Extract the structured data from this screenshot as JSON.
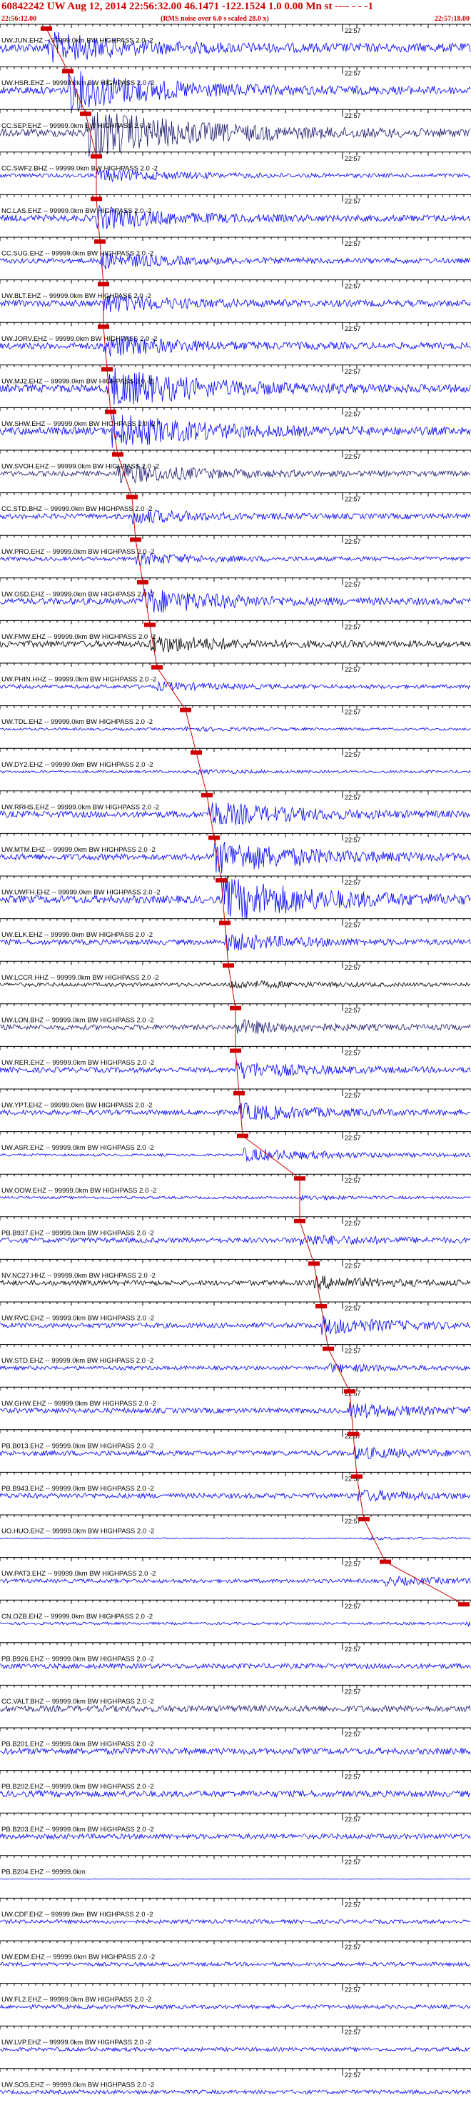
{
  "header": {
    "title": "60842242 UW Aug 12, 2014 22:56:32.00   46.1471  -122.1524  1.0 0.00  Mn st ---- - - -1",
    "start_time": "22:56:12.00",
    "noise_note": "(RMS noise over 6.0 s scaled 28.0 x)",
    "end_time": "22:57:18.00"
  },
  "colors": {
    "header": "#d00000",
    "blue": "#0000ff",
    "black": "#000000",
    "navy": "#1a1a6e",
    "pick": "#d00000"
  },
  "chart_data": {
    "type": "line",
    "title": "60842242 UW Aug 12, 2014 22:56:32.00   46.1471  -122.1524  1.0 0.00  Mn st ---- - - -1",
    "xlabel": "",
    "ylabel": "",
    "xlim": [
      "22:56:12.00",
      "22:57:18.00"
    ],
    "minute_label": "22:57",
    "grid": false,
    "series": [
      {
        "name": "UW.JUN.EHZ -- 99999.0km BW  HIGHPASS  2.0 -2",
        "color": "blue",
        "pick_time": 6.5,
        "amplitude": 0.35,
        "burst": 0.5
      },
      {
        "name": "UW.HSR.EHZ -- 99999.0km BW  HIGHPASS  2.0 -2",
        "color": "blue",
        "pick_time": 9.5,
        "amplitude": 0.3,
        "burst": 0.8
      },
      {
        "name": "CC.SEP.EHZ -- 99999.0km BW  HIGHPASS  2.0 -2",
        "color": "navy",
        "pick_time": 12.0,
        "amplitude": 0.3,
        "burst": 1.0
      },
      {
        "name": "CC.SWF2.BHZ -- 99999.0km BW  HIGHPASS  2.0 -2",
        "color": "blue",
        "pick_time": 13.5,
        "amplitude": 0.15,
        "burst": 0.5
      },
      {
        "name": "NC.LAS.EHZ -- 99999.0km BW  HIGHPASS  2.0 -2",
        "color": "blue",
        "pick_time": 13.5,
        "amplitude": 0.25,
        "burst": 0.5
      },
      {
        "name": "CC.SUG.EHZ -- 99999.0km BW  HIGHPASS  2.0 -2",
        "color": "blue",
        "pick_time": 14.0,
        "amplitude": 0.2,
        "burst": 0.45
      },
      {
        "name": "UW.BLT.EHZ -- 99999.0km BW  HIGHPASS  2.0 -2",
        "color": "blue",
        "pick_time": 14.5,
        "amplitude": 0.25,
        "burst": 0.4
      },
      {
        "name": "UW.JORV.EHZ -- 99999.0km BW  HIGHPASS  2.0 -2",
        "color": "blue",
        "pick_time": 14.5,
        "amplitude": 0.25,
        "burst": 0.5
      },
      {
        "name": "UW.MJ2.EHZ -- 99999.0km BW  HIGHPASS  2.0 -2",
        "color": "blue",
        "pick_time": 15.0,
        "amplitude": 0.3,
        "burst": 0.8
      },
      {
        "name": "UW.SHW.EHZ -- 99999.0km BW  HIGHPASS  2.0 -2",
        "color": "blue",
        "pick_time": 15.5,
        "amplitude": 0.3,
        "burst": 0.7
      },
      {
        "name": "UW.SVOH.EHZ -- 99999.0km BW  HIGHPASS  2.0 -2",
        "color": "navy",
        "pick_time": 16.5,
        "amplitude": 0.2,
        "burst": 0.6
      },
      {
        "name": "CC.STD.BHZ -- 99999.0km BW  HIGHPASS  2.0 -2",
        "color": "blue",
        "pick_time": 18.5,
        "amplitude": 0.2,
        "burst": 0.4
      },
      {
        "name": "UW.PRO.EHZ -- 99999.0km BW  HIGHPASS  2.0 -2",
        "color": "blue",
        "pick_time": 19.0,
        "amplitude": 0.15,
        "burst": 0.45
      },
      {
        "name": "UW.OSD.EHZ -- 99999.0km BW  HIGHPASS  2.0 -2",
        "color": "blue",
        "pick_time": 20.0,
        "amplitude": 0.25,
        "burst": 0.6
      },
      {
        "name": "UW.FMW.EHZ -- 99999.0km BW  HIGHPASS  2.0 -2",
        "color": "black",
        "pick_time": 21.0,
        "amplitude": 0.25,
        "burst": 0.4
      },
      {
        "name": "UW.PHIN.HHZ -- 99999.0km BW  HIGHPASS  2.0 -2",
        "color": "blue",
        "pick_time": 22.0,
        "amplitude": 0.15,
        "burst": 0.3
      },
      {
        "name": "UW.TDL.EHZ -- 99999.0km BW  HIGHPASS  2.0 -2",
        "color": "blue",
        "pick_time": 26.0,
        "amplitude": 0.1,
        "burst": 0.2
      },
      {
        "name": "UW.DY2.EHZ -- 99999.0km BW  HIGHPASS  2.0 -2",
        "color": "blue",
        "pick_time": 27.5,
        "amplitude": 0.1,
        "burst": 0.2
      },
      {
        "name": "UW.RRHS.EHZ -- 99999.0km BW  HIGHPASS  2.0 -2",
        "color": "blue",
        "pick_time": 29.0,
        "amplitude": 0.25,
        "burst": 0.6
      },
      {
        "name": "UW.MTM.EHZ -- 99999.0km BW  HIGHPASS  2.0 -2",
        "color": "blue",
        "pick_time": 30.0,
        "amplitude": 0.25,
        "burst": 0.8
      },
      {
        "name": "UW.UWFH.EHZ -- 99999.0km BW  HIGHPASS  2.0 -2",
        "color": "blue",
        "pick_time": 31.0,
        "amplitude": 0.3,
        "burst": 0.9
      },
      {
        "name": "UW.ELK.EHZ -- 99999.0km BW  HIGHPASS  2.0 -2",
        "color": "blue",
        "pick_time": 31.5,
        "amplitude": 0.2,
        "burst": 0.5
      },
      {
        "name": "UW.LCCR.HHZ -- 99999.0km BW  HIGHPASS  2.0 -2",
        "color": "black",
        "pick_time": 32.0,
        "amplitude": 0.15,
        "burst": 0.3
      },
      {
        "name": "UW.LON.BHZ -- 99999.0km BW  HIGHPASS  2.0 -2",
        "color": "navy",
        "pick_time": 33.0,
        "amplitude": 0.2,
        "burst": 0.4
      },
      {
        "name": "UW.RER.EHZ -- 99999.0km BW  HIGHPASS  2.0 -2",
        "color": "blue",
        "pick_time": 33.0,
        "amplitude": 0.2,
        "burst": 0.5
      },
      {
        "name": "UW.YPT.EHZ -- 99999.0km BW  HIGHPASS  2.0 -2",
        "color": "blue",
        "pick_time": 33.5,
        "amplitude": 0.2,
        "burst": 0.5
      },
      {
        "name": "UW.ASR.EHZ -- 99999.0km BW  HIGHPASS  2.0 -2",
        "color": "blue",
        "pick_time": 34.0,
        "amplitude": 0.1,
        "burst": 0.8
      },
      {
        "name": "UW.OOW.EHZ -- 99999.0km BW  HIGHPASS  2.0 -2",
        "color": "blue",
        "pick_time": 42.0,
        "amplitude": 0.1,
        "burst": 0.2
      },
      {
        "name": "PB.B937.EHZ -- 99999.0km BW  HIGHPASS  2.0 -2",
        "color": "blue",
        "pick_time": 42.0,
        "amplitude": 0.2,
        "burst": 0.3
      },
      {
        "name": "NV.NC27.HHZ -- 99999.0km BW  HIGHPASS  2.0 -2",
        "color": "black",
        "pick_time": 44.0,
        "amplitude": 0.2,
        "burst": 0.35
      },
      {
        "name": "UW.RVC.EHZ -- 99999.0km BW  HIGHPASS  2.0 -2",
        "color": "blue",
        "pick_time": 45.0,
        "amplitude": 0.2,
        "burst": 0.5
      },
      {
        "name": "UW.STD.EHZ -- 99999.0km BW  HIGHPASS  2.0 -2",
        "color": "blue",
        "pick_time": 46.0,
        "amplitude": 0.15,
        "burst": 0.3
      },
      {
        "name": "UW.GHW.EHZ -- 99999.0km BW  HIGHPASS  2.0 -2",
        "color": "blue",
        "pick_time": 49.0,
        "amplitude": 0.2,
        "burst": 0.4
      },
      {
        "name": "PB.B013.EHZ -- 99999.0km BW  HIGHPASS  2.0 -2",
        "color": "blue",
        "pick_time": 49.5,
        "amplitude": 0.2,
        "burst": 0.3
      },
      {
        "name": "PB.B943.EHZ -- 99999.0km BW  HIGHPASS  2.0 -2",
        "color": "blue",
        "pick_time": 50.0,
        "amplitude": 0.2,
        "burst": 0.3
      },
      {
        "name": "UO.HUO.EHZ -- 99999.0km BW  HIGHPASS  2.0 -2",
        "color": "blue",
        "pick_time": 51.0,
        "amplitude": 0.05,
        "burst": 0.3
      },
      {
        "name": "UW.PAT3.EHZ -- 99999.0km BW  HIGHPASS  2.0 -2",
        "color": "blue",
        "pick_time": 54.0,
        "amplitude": 0.15,
        "burst": 0.3
      },
      {
        "name": "CN.OZB.EHZ -- 99999.0km BW  HIGHPASS  2.0 -2",
        "color": "blue",
        "pick_time": 65.0,
        "amplitude": 0.1,
        "burst": 0.2
      },
      {
        "name": "PB.B926.EHZ -- 99999.0km BW  HIGHPASS  2.0 -2",
        "color": "blue",
        "pick_time": null,
        "amplitude": 0.2,
        "burst": 0
      },
      {
        "name": "CC.VALT.BHZ -- 99999.0km BW  HIGHPASS  2.0 -2",
        "color": "navy",
        "pick_time": null,
        "amplitude": 0.25,
        "burst": 0
      },
      {
        "name": "PB.B201.EHZ -- 99999.0km BW  HIGHPASS  2.0 -2",
        "color": "blue",
        "pick_time": null,
        "amplitude": 0.25,
        "burst": 0
      },
      {
        "name": "PB.B202.EHZ -- 99999.0km BW  HIGHPASS  2.0 -2",
        "color": "blue",
        "pick_time": null,
        "amplitude": 0.25,
        "burst": 0
      },
      {
        "name": "PB.B203.EHZ -- 99999.0km BW  HIGHPASS  2.0 -2",
        "color": "blue",
        "pick_time": null,
        "amplitude": 0.2,
        "burst": 0
      },
      {
        "name": "PB.B204.EHZ -- 99999.0km",
        "color": "blue",
        "pick_time": null,
        "amplitude": 0.02,
        "burst": 0
      },
      {
        "name": "UW.CDF.EHZ -- 99999.0km BW  HIGHPASS  2.0 -2",
        "color": "blue",
        "pick_time": null,
        "amplitude": 0.15,
        "burst": 0
      },
      {
        "name": "UW.EDM.EHZ -- 99999.0km BW  HIGHPASS  2.0 -2",
        "color": "blue",
        "pick_time": null,
        "amplitude": 0.15,
        "burst": 0
      },
      {
        "name": "UW.FL2.EHZ -- 99999.0km BW  HIGHPASS  2.0 -2",
        "color": "blue",
        "pick_time": null,
        "amplitude": 0.15,
        "burst": 0
      },
      {
        "name": "UW.LVP.EHZ -- 99999.0km BW  HIGHPASS  2.0 -2",
        "color": "blue",
        "pick_time": null,
        "amplitude": 0.15,
        "burst": 0
      },
      {
        "name": "UW.SOS.EHZ -- 99999.0km BW  HIGHPASS  2.0 -2",
        "color": "blue",
        "pick_time": null,
        "amplitude": 0.15,
        "burst": 0
      }
    ]
  }
}
